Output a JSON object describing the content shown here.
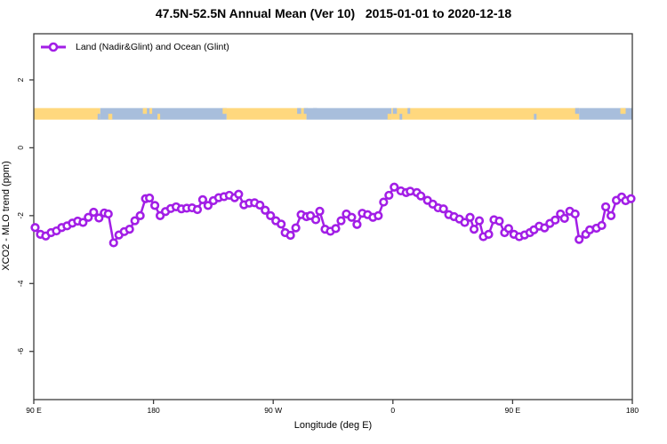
{
  "title": "47.5N-52.5N Annual Mean (Ver 10)   2015-01-01 to 2020-12-18",
  "legend": {
    "label": "Land (Nadir&Glint) and Ocean (Glint)"
  },
  "colors": {
    "series": "#A21EE6",
    "land": "#FFD87E",
    "ocean": "#A8BEDC",
    "axis": "#3c3c3c",
    "text": "#000000",
    "background": "#FFFFFF"
  },
  "chart_data": {
    "type": "line",
    "title": "47.5N-52.5N Annual Mean (Ver 10)   2015-01-01 to 2020-12-18",
    "xlabel": "Longitude (deg E)",
    "ylabel": "XCO2 - MLO trend (ppm)",
    "xlim": [
      90,
      540
    ],
    "ylim": [
      -7.42,
      3.36
    ],
    "grid": false,
    "legend_position": "top-left-inside",
    "x_ticks": [
      {
        "value": 90,
        "label": "90 E"
      },
      {
        "value": 180,
        "label": "180"
      },
      {
        "value": 270,
        "label": "90 W"
      },
      {
        "value": 360,
        "label": "0"
      },
      {
        "value": 450,
        "label": "90 E"
      },
      {
        "value": 540,
        "label": "180"
      }
    ],
    "y_ticks": [
      {
        "value": 2,
        "label": "2"
      },
      {
        "value": 0,
        "label": "0"
      },
      {
        "value": -2,
        "label": "-2"
      },
      {
        "value": -4,
        "label": "-4"
      },
      {
        "value": -6,
        "label": "-6"
      }
    ],
    "surface_band": {
      "description": "land(yellow)/ocean(blue) strip along longitude",
      "y_value": 1.0,
      "thickness_value": 0.34,
      "segments": [
        {
          "from": 90,
          "to": 140,
          "surface": "land"
        },
        {
          "from": 140,
          "to": 235,
          "surface": "ocean"
        },
        {
          "from": 235,
          "to": 295,
          "surface": "land"
        },
        {
          "from": 295,
          "to": 359,
          "surface": "ocean"
        },
        {
          "from": 359,
          "to": 500,
          "surface": "land"
        },
        {
          "from": 500,
          "to": 540,
          "surface": "ocean"
        }
      ],
      "specks": [
        {
          "from": 138,
          "to": 140,
          "surface": "ocean",
          "half": "bottom"
        },
        {
          "from": 146,
          "to": 149,
          "surface": "land",
          "half": "bottom"
        },
        {
          "from": 172,
          "to": 175,
          "surface": "land",
          "half": "top"
        },
        {
          "from": 177,
          "to": 179,
          "surface": "land",
          "half": "top"
        },
        {
          "from": 183,
          "to": 185,
          "surface": "land",
          "half": "bottom"
        },
        {
          "from": 232,
          "to": 235,
          "surface": "land",
          "half": "top"
        },
        {
          "from": 288,
          "to": 291,
          "surface": "ocean",
          "half": "top"
        },
        {
          "from": 293,
          "to": 296,
          "surface": "ocean",
          "half": "top"
        },
        {
          "from": 300,
          "to": 303,
          "surface": "ocean",
          "half": "top"
        },
        {
          "from": 356,
          "to": 359,
          "surface": "land",
          "half": "bottom"
        },
        {
          "from": 360,
          "to": 363,
          "surface": "ocean",
          "half": "top"
        },
        {
          "from": 365,
          "to": 367,
          "surface": "ocean",
          "half": "bottom"
        },
        {
          "from": 371,
          "to": 373,
          "surface": "ocean",
          "half": "top"
        },
        {
          "from": 466,
          "to": 468,
          "surface": "ocean",
          "half": "bottom"
        },
        {
          "from": 497,
          "to": 500,
          "surface": "ocean",
          "half": "top"
        },
        {
          "from": 531,
          "to": 535,
          "surface": "land",
          "half": "top"
        }
      ]
    },
    "series": [
      {
        "name": "Land (Nadir&Glint) and Ocean (Glint)",
        "marker": "open-circle",
        "color": "#A21EE6",
        "points": [
          [
            91,
            -2.35
          ],
          [
            95,
            -2.55
          ],
          [
            99,
            -2.6
          ],
          [
            103,
            -2.5
          ],
          [
            107,
            -2.45
          ],
          [
            111,
            -2.35
          ],
          [
            115,
            -2.3
          ],
          [
            119,
            -2.22
          ],
          [
            123,
            -2.16
          ],
          [
            127,
            -2.2
          ],
          [
            131,
            -2.05
          ],
          [
            135,
            -1.9
          ],
          [
            139,
            -2.07
          ],
          [
            143,
            -1.92
          ],
          [
            146,
            -1.95
          ],
          [
            150,
            -2.8
          ],
          [
            154,
            -2.57
          ],
          [
            158,
            -2.47
          ],
          [
            162,
            -2.4
          ],
          [
            166,
            -2.15
          ],
          [
            170,
            -2.0
          ],
          [
            174,
            -1.5
          ],
          [
            177,
            -1.48
          ],
          [
            181,
            -1.7
          ],
          [
            185,
            -2.0
          ],
          [
            189,
            -1.88
          ],
          [
            193,
            -1.79
          ],
          [
            197,
            -1.74
          ],
          [
            201,
            -1.8
          ],
          [
            205,
            -1.78
          ],
          [
            209,
            -1.77
          ],
          [
            213,
            -1.82
          ],
          [
            217,
            -1.53
          ],
          [
            221,
            -1.7
          ],
          [
            225,
            -1.56
          ],
          [
            229,
            -1.47
          ],
          [
            233,
            -1.44
          ],
          [
            237,
            -1.4
          ],
          [
            241,
            -1.47
          ],
          [
            244,
            -1.37
          ],
          [
            248,
            -1.68
          ],
          [
            252,
            -1.63
          ],
          [
            256,
            -1.62
          ],
          [
            260,
            -1.69
          ],
          [
            264,
            -1.84
          ],
          [
            268,
            -2.0
          ],
          [
            272,
            -2.15
          ],
          [
            276,
            -2.25
          ],
          [
            279,
            -2.5
          ],
          [
            283,
            -2.58
          ],
          [
            287,
            -2.36
          ],
          [
            291,
            -1.97
          ],
          [
            295,
            -2.03
          ],
          [
            298,
            -2.0
          ],
          [
            302,
            -2.12
          ],
          [
            305,
            -1.87
          ],
          [
            309,
            -2.4
          ],
          [
            313,
            -2.46
          ],
          [
            317,
            -2.38
          ],
          [
            321,
            -2.15
          ],
          [
            325,
            -1.95
          ],
          [
            329,
            -2.05
          ],
          [
            333,
            -2.26
          ],
          [
            337,
            -1.93
          ],
          [
            341,
            -1.97
          ],
          [
            345,
            -2.05
          ],
          [
            349,
            -2.0
          ],
          [
            353,
            -1.6
          ],
          [
            357,
            -1.4
          ],
          [
            361,
            -1.16
          ],
          [
            366,
            -1.27
          ],
          [
            370,
            -1.32
          ],
          [
            373,
            -1.28
          ],
          [
            378,
            -1.32
          ],
          [
            381,
            -1.42
          ],
          [
            386,
            -1.55
          ],
          [
            390,
            -1.66
          ],
          [
            394,
            -1.77
          ],
          [
            398,
            -1.8
          ],
          [
            402,
            -1.97
          ],
          [
            406,
            -2.03
          ],
          [
            410,
            -2.1
          ],
          [
            414,
            -2.2
          ],
          [
            418,
            -2.05
          ],
          [
            421,
            -2.4
          ],
          [
            425,
            -2.15
          ],
          [
            428,
            -2.62
          ],
          [
            432,
            -2.55
          ],
          [
            436,
            -2.12
          ],
          [
            440,
            -2.16
          ],
          [
            444,
            -2.5
          ],
          [
            447,
            -2.38
          ],
          [
            451,
            -2.55
          ],
          [
            455,
            -2.62
          ],
          [
            459,
            -2.57
          ],
          [
            463,
            -2.5
          ],
          [
            466,
            -2.42
          ],
          [
            470,
            -2.31
          ],
          [
            474,
            -2.36
          ],
          [
            478,
            -2.23
          ],
          [
            482,
            -2.13
          ],
          [
            486,
            -1.95
          ],
          [
            489,
            -2.08
          ],
          [
            493,
            -1.87
          ],
          [
            497,
            -1.95
          ],
          [
            500,
            -2.7
          ],
          [
            505,
            -2.55
          ],
          [
            508,
            -2.42
          ],
          [
            513,
            -2.37
          ],
          [
            517,
            -2.29
          ],
          [
            520,
            -1.74
          ],
          [
            524,
            -2.0
          ],
          [
            528,
            -1.55
          ],
          [
            532,
            -1.45
          ],
          [
            535,
            -1.56
          ],
          [
            539,
            -1.5
          ]
        ]
      }
    ]
  }
}
